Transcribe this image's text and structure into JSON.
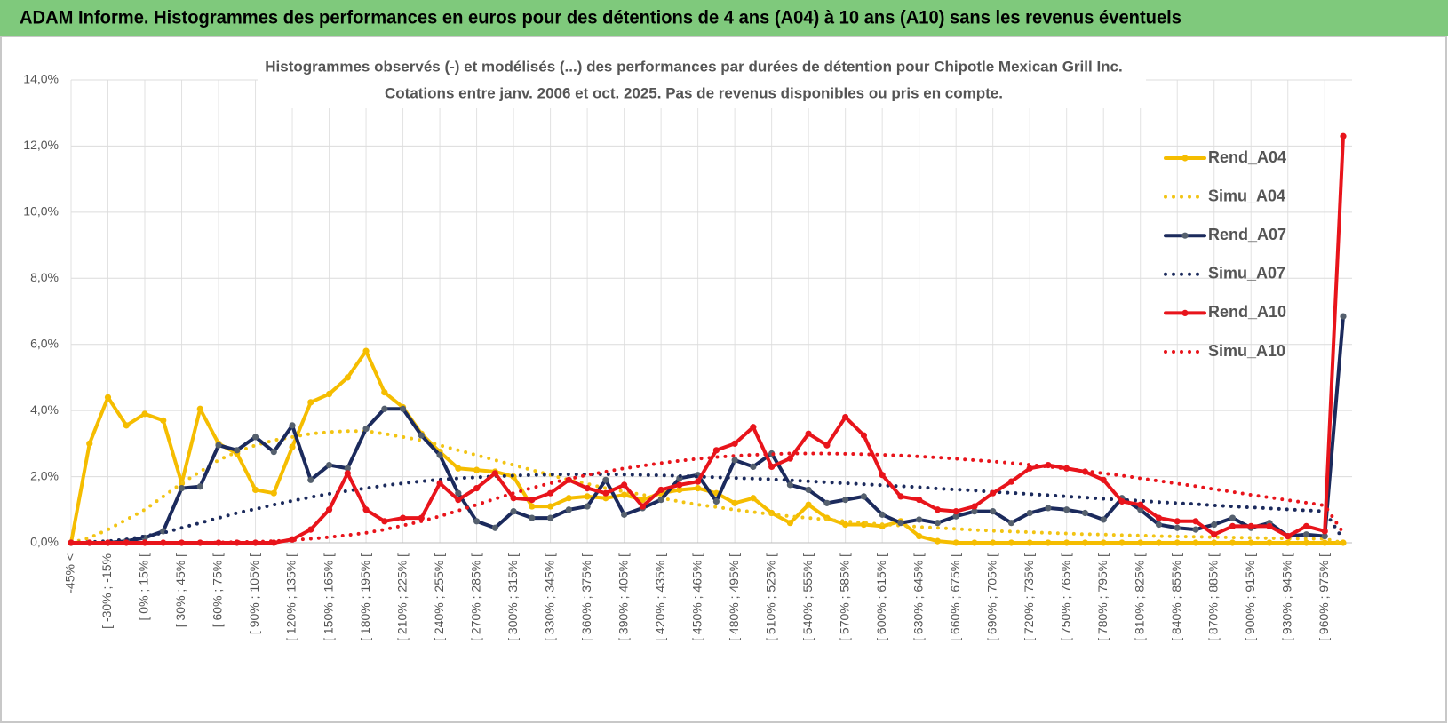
{
  "header": {
    "title": "ADAM Informe. Histogrammes des performances en euros pour des détentions de 4 ans (A04) à 10 ans (A10) sans les revenus éventuels"
  },
  "chart_data": {
    "type": "line",
    "title": "Histogrammes observés (-) et modélisés (...) des performances par durées de détention pour Chipotle Mexican Grill Inc.",
    "subtitle": "Cotations entre janv. 2006 et oct. 2025. Pas de revenus disponibles ou pris en compte.",
    "categories": [
      "-45% <",
      null,
      "[ -30% ; -15%",
      null,
      "[ 0% ; 15% [",
      null,
      "[ 30% ; 45% [",
      null,
      "[ 60% ; 75% [",
      null,
      "[ 90% ; 105% [",
      null,
      "[ 120% ; 135% [",
      null,
      "[ 150% ; 165% [",
      null,
      "[ 180% ; 195% [",
      null,
      "[ 210% ; 225% [",
      null,
      "[ 240% ; 255% [",
      null,
      "[ 270% ; 285% [",
      null,
      "[ 300% ; 315% [",
      null,
      "[ 330% ; 345% [",
      null,
      "[ 360% ; 375% [",
      null,
      "[ 390% ; 405% [",
      null,
      "[ 420% ; 435% [",
      null,
      "[ 450% ; 465% [",
      null,
      "[ 480% ; 495% [",
      null,
      "[ 510% ; 525% [",
      null,
      "[ 540% ; 555% [",
      null,
      "[ 570% ; 585% [",
      null,
      "[ 600% ; 615% [",
      null,
      "[ 630% ; 645% [",
      null,
      "[ 660% ; 675% [",
      null,
      "[ 690% ; 705% [",
      null,
      "[ 720% ; 735% [",
      null,
      "[ 750% ; 765% [",
      null,
      "[ 780% ; 795% [",
      null,
      "[ 810% ; 825% [",
      null,
      "[ 840% ; 855% [",
      null,
      "[ 870% ; 885% [",
      null,
      "[ 900% ; 915% [",
      null,
      "[ 930% ; 945% [",
      null,
      "[ 960% ; 975% [",
      null
    ],
    "ylim": [
      0,
      14
    ],
    "yticks": [
      {
        "value": 0,
        "label": "0,0%"
      },
      {
        "value": 2,
        "label": "2,0%"
      },
      {
        "value": 4,
        "label": "4,0%"
      },
      {
        "value": 6,
        "label": "6,0%"
      },
      {
        "value": 8,
        "label": "8,0%"
      },
      {
        "value": 10,
        "label": "10,0%"
      },
      {
        "value": 12,
        "label": "12,0%"
      },
      {
        "value": 14,
        "label": "14,0%"
      }
    ],
    "grid": true,
    "legend": "right",
    "series": [
      {
        "name": "Rend_A04",
        "color": "#f5bd00",
        "style": "solid",
        "values": [
          0,
          3.0,
          4.4,
          3.55,
          3.9,
          3.7,
          1.8,
          4.05,
          3.0,
          2.7,
          1.6,
          1.5,
          2.9,
          4.25,
          4.5,
          5.0,
          5.8,
          4.55,
          4.1,
          3.3,
          2.75,
          2.25,
          2.2,
          2.15,
          2.0,
          1.1,
          1.1,
          1.35,
          1.4,
          1.35,
          1.45,
          1.3,
          1.5,
          1.6,
          1.65,
          1.5,
          1.2,
          1.35,
          0.9,
          0.6,
          1.15,
          0.75,
          0.55,
          0.55,
          0.5,
          0.65,
          0.2,
          0.05,
          0,
          0,
          0,
          0,
          0,
          0,
          0,
          0,
          0,
          0,
          0,
          0,
          0,
          0,
          0,
          0,
          0,
          0,
          0,
          0,
          0,
          0
        ]
      },
      {
        "name": "Simu_A04",
        "color": "#f2c414",
        "style": "dotted",
        "values": [
          0,
          0.15,
          0.4,
          0.7,
          1.0,
          1.4,
          1.8,
          2.15,
          2.5,
          2.75,
          2.95,
          3.1,
          3.2,
          3.3,
          3.35,
          3.38,
          3.38,
          3.3,
          3.2,
          3.1,
          2.95,
          2.8,
          2.65,
          2.5,
          2.35,
          2.2,
          2.05,
          1.9,
          1.78,
          1.65,
          1.55,
          1.45,
          1.35,
          1.25,
          1.15,
          1.08,
          1.0,
          0.93,
          0.86,
          0.8,
          0.75,
          0.7,
          0.65,
          0.6,
          0.56,
          0.52,
          0.48,
          0.45,
          0.42,
          0.39,
          0.36,
          0.34,
          0.32,
          0.3,
          0.28,
          0.26,
          0.25,
          0.23,
          0.22,
          0.2,
          0.19,
          0.18,
          0.17,
          0.16,
          0.15,
          0.14,
          0.13,
          0.12,
          0.12,
          0
        ]
      },
      {
        "name": "Rend_A07",
        "color": "#1b2a5c",
        "style": "solid",
        "values": [
          0,
          0,
          0,
          0.05,
          0.15,
          0.35,
          1.65,
          1.7,
          2.95,
          2.8,
          3.2,
          2.75,
          3.55,
          1.9,
          2.35,
          2.25,
          3.45,
          4.05,
          4.05,
          3.25,
          2.65,
          1.5,
          0.65,
          0.45,
          0.95,
          0.75,
          0.75,
          1.0,
          1.1,
          1.9,
          0.85,
          1.05,
          1.3,
          1.95,
          2.05,
          1.25,
          2.5,
          2.3,
          2.7,
          1.75,
          1.6,
          1.2,
          1.3,
          1.4,
          0.85,
          0.6,
          0.7,
          0.6,
          0.8,
          0.95,
          0.95,
          0.6,
          0.9,
          1.05,
          1.0,
          0.9,
          0.7,
          1.35,
          1.0,
          0.55,
          0.45,
          0.4,
          0.55,
          0.75,
          0.45,
          0.6,
          0.2,
          0.25,
          0.2,
          6.85
        ]
      },
      {
        "name": "Simu_A07",
        "color": "#1b2a5c",
        "style": "dotted",
        "values": [
          0,
          0.02,
          0.05,
          0.1,
          0.2,
          0.3,
          0.45,
          0.6,
          0.75,
          0.9,
          1.02,
          1.15,
          1.27,
          1.38,
          1.48,
          1.57,
          1.65,
          1.73,
          1.8,
          1.86,
          1.91,
          1.95,
          1.98,
          2.01,
          2.03,
          2.05,
          2.06,
          2.07,
          2.07,
          2.07,
          2.06,
          2.05,
          2.04,
          2.02,
          2.0,
          1.98,
          1.96,
          1.94,
          1.92,
          1.89,
          1.86,
          1.83,
          1.8,
          1.77,
          1.74,
          1.71,
          1.68,
          1.64,
          1.61,
          1.58,
          1.54,
          1.51,
          1.47,
          1.44,
          1.4,
          1.37,
          1.33,
          1.3,
          1.27,
          1.23,
          1.2,
          1.17,
          1.13,
          1.1,
          1.07,
          1.04,
          1.01,
          0.98,
          0.95,
          0.1
        ]
      },
      {
        "name": "Rend_A10",
        "color": "#e8141b",
        "style": "solid",
        "values": [
          0,
          0,
          0,
          0,
          0,
          0,
          0,
          0,
          0,
          0,
          0,
          0,
          0.1,
          0.4,
          1.0,
          2.1,
          1.0,
          0.65,
          0.75,
          0.75,
          1.8,
          1.3,
          1.65,
          2.1,
          1.35,
          1.3,
          1.5,
          1.9,
          1.65,
          1.5,
          1.75,
          1.1,
          1.6,
          1.75,
          1.85,
          2.8,
          3.0,
          3.5,
          2.3,
          2.55,
          3.3,
          2.95,
          3.8,
          3.25,
          2.05,
          1.4,
          1.3,
          1.0,
          0.95,
          1.1,
          1.5,
          1.85,
          2.25,
          2.35,
          2.25,
          2.15,
          1.9,
          1.25,
          1.15,
          0.75,
          0.65,
          0.65,
          0.25,
          0.5,
          0.5,
          0.5,
          0.2,
          0.5,
          0.35,
          12.3
        ]
      },
      {
        "name": "Simu_A10",
        "color": "#e8141b",
        "style": "dotted",
        "values": [
          0,
          0,
          0,
          0,
          0,
          0,
          0,
          0,
          0.01,
          0.02,
          0.03,
          0.05,
          0.08,
          0.12,
          0.17,
          0.23,
          0.3,
          0.4,
          0.52,
          0.65,
          0.8,
          0.97,
          1.15,
          1.33,
          1.5,
          1.66,
          1.8,
          1.93,
          2.05,
          2.15,
          2.25,
          2.33,
          2.41,
          2.48,
          2.54,
          2.59,
          2.63,
          2.66,
          2.68,
          2.7,
          2.7,
          2.7,
          2.69,
          2.68,
          2.66,
          2.64,
          2.61,
          2.58,
          2.54,
          2.5,
          2.46,
          2.41,
          2.36,
          2.3,
          2.24,
          2.17,
          2.1,
          2.03,
          1.95,
          1.87,
          1.79,
          1.71,
          1.62,
          1.54,
          1.45,
          1.37,
          1.29,
          1.21,
          1.13,
          0.3
        ]
      }
    ]
  }
}
